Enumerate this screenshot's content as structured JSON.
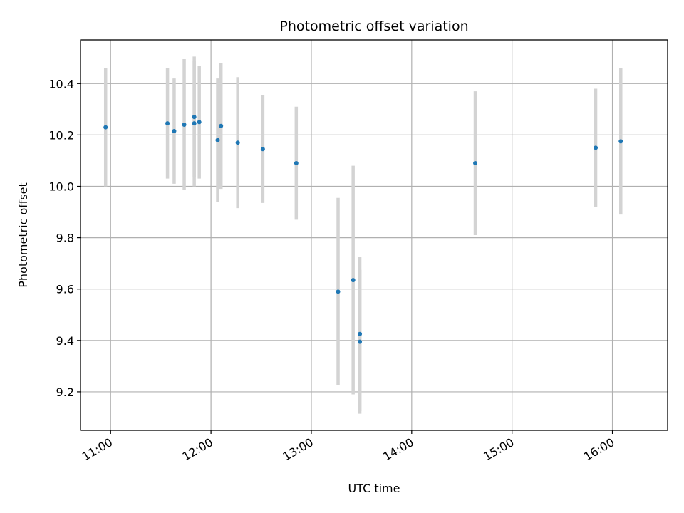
{
  "chart_data": {
    "type": "scatter",
    "title": "Photometric offset variation",
    "xlabel": "UTC time",
    "ylabel": "Photometric offset",
    "x_unit": "hours UTC",
    "xlim": [
      "10:42",
      "16:33"
    ],
    "ylim": [
      9.05,
      10.57
    ],
    "x_ticks": [
      "11:00",
      "12:00",
      "13:00",
      "14:00",
      "15:00",
      "16:00"
    ],
    "y_ticks": [
      9.2,
      9.4,
      9.6,
      9.8,
      10.0,
      10.2,
      10.4
    ],
    "grid": true,
    "marker_color": "#1f77b4",
    "errorbar_color": "#d3d3d3",
    "points": [
      {
        "x": "10:57",
        "y": 10.23,
        "err": 0.23
      },
      {
        "x": "11:34",
        "y": 10.245,
        "err": 0.215
      },
      {
        "x": "11:38",
        "y": 10.215,
        "err": 0.205
      },
      {
        "x": "11:44",
        "y": 10.24,
        "err": 0.255
      },
      {
        "x": "11:50",
        "y": 10.27,
        "err": 0.235
      },
      {
        "x": "11:50",
        "y": 10.245,
        "err": 0.245
      },
      {
        "x": "11:53",
        "y": 10.25,
        "err": 0.22
      },
      {
        "x": "12:04",
        "y": 10.18,
        "err": 0.24
      },
      {
        "x": "12:06",
        "y": 10.235,
        "err": 0.245
      },
      {
        "x": "12:16",
        "y": 10.17,
        "err": 0.255
      },
      {
        "x": "12:31",
        "y": 10.145,
        "err": 0.21
      },
      {
        "x": "12:51",
        "y": 10.09,
        "err": 0.22
      },
      {
        "x": "13:16",
        "y": 9.59,
        "err": 0.365
      },
      {
        "x": "13:25",
        "y": 9.635,
        "err": 0.445
      },
      {
        "x": "13:29",
        "y": 9.425,
        "err": 0.3
      },
      {
        "x": "13:29",
        "y": 9.395,
        "err": 0.28
      },
      {
        "x": "14:38",
        "y": 10.09,
        "err": 0.28
      },
      {
        "x": "15:50",
        "y": 10.15,
        "err": 0.23
      },
      {
        "x": "16:05",
        "y": 10.175,
        "err": 0.285
      }
    ]
  }
}
